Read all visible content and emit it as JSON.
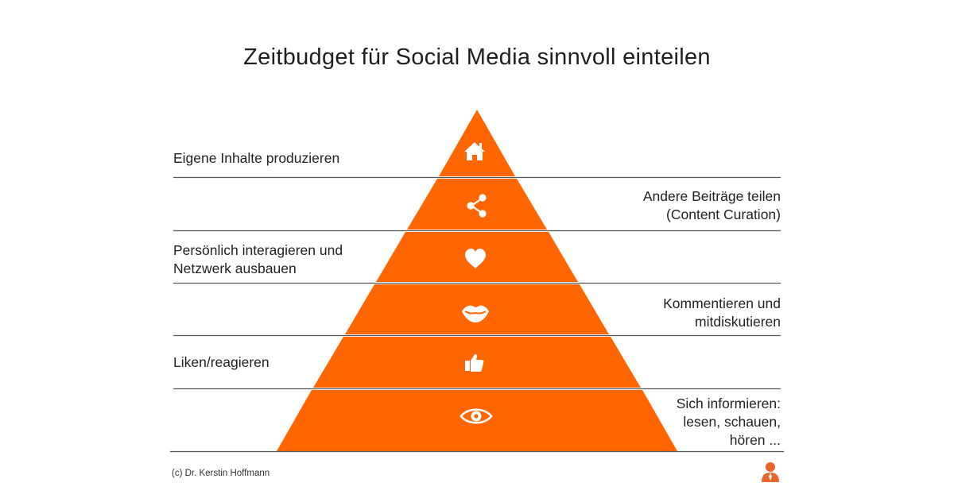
{
  "title": "Zeitbudget für Social Media sinnvoll einteilen",
  "colors": {
    "pyramid": "#FF6600",
    "lines": "#555555",
    "icon": "#ffffff"
  },
  "levels": [
    {
      "icon": "house-icon",
      "side": "left",
      "lines": [
        "Eigene Inhalte produzieren"
      ]
    },
    {
      "icon": "share-icon",
      "side": "right",
      "lines": [
        "Andere Beiträge teilen",
        "(Content Curation)"
      ]
    },
    {
      "icon": "heart-icon",
      "side": "left",
      "lines": [
        "Persönlich interagieren und",
        "Netzwerk ausbauen"
      ]
    },
    {
      "icon": "lips-icon",
      "side": "right",
      "lines": [
        "Kommentieren und",
        "mitdiskutieren"
      ]
    },
    {
      "icon": "thumbs-up-icon",
      "side": "left",
      "lines": [
        "Liken/reagieren"
      ]
    },
    {
      "icon": "eye-icon",
      "side": "right",
      "lines": [
        "Sich informieren:",
        "lesen, schauen,",
        "hören ..."
      ]
    }
  ],
  "footer": {
    "credit": "(c) Dr. Kerstin Hoffmann",
    "logo_icon": "person-icon"
  }
}
